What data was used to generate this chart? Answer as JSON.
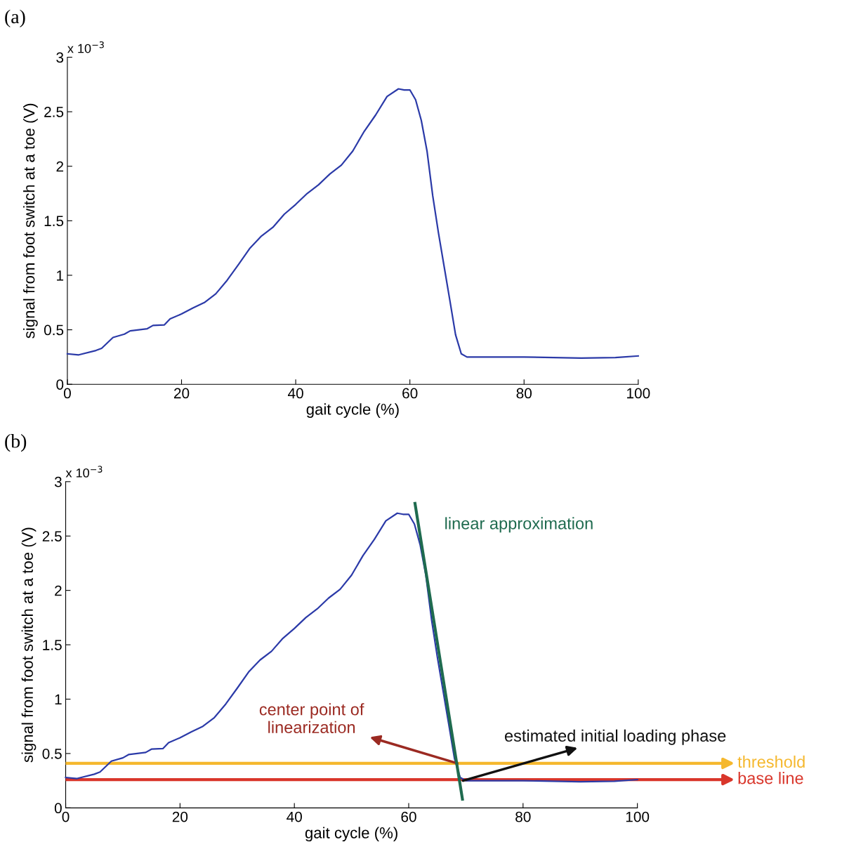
{
  "chart_data": [
    {
      "type": "line",
      "title": "(a)",
      "xlabel": "gait cycle (%)",
      "ylabel": "signal from foot switch at a toe (V)",
      "x": [
        0,
        2,
        5,
        6,
        8,
        10,
        11,
        14,
        15,
        17,
        18,
        20,
        22,
        24,
        26,
        28,
        30,
        32,
        34,
        36,
        38,
        40,
        42,
        44,
        46,
        48,
        50,
        52,
        54,
        56,
        58,
        59,
        60,
        61,
        62,
        63,
        64,
        65,
        66,
        67,
        68,
        69,
        70,
        80,
        90,
        96,
        100
      ],
      "series": [
        {
          "color": "#2b3aa8",
          "values": [
            0.28,
            0.27,
            0.31,
            0.33,
            0.43,
            0.46,
            0.49,
            0.51,
            0.54,
            0.545,
            0.6,
            0.645,
            0.7,
            0.75,
            0.83,
            0.955,
            1.1,
            1.25,
            1.36,
            1.44,
            1.56,
            1.65,
            1.75,
            1.83,
            1.93,
            2.01,
            2.14,
            2.32,
            2.47,
            2.64,
            2.71,
            2.7,
            2.7,
            2.61,
            2.42,
            2.14,
            1.73,
            1.39,
            1.08,
            0.77,
            0.455,
            0.28,
            0.25,
            0.25,
            0.24,
            0.245,
            0.26
          ]
        }
      ],
      "annotations": [
        "x 10$^{−3}$"
      ],
      "xlim": [
        0,
        100
      ],
      "xticks": [
        0,
        20,
        40,
        60,
        80,
        100
      ],
      "ylim": [
        0,
        3
      ],
      "yticks": [
        0,
        0.5,
        1,
        1.5,
        2,
        2.5,
        3
      ],
      "grid": false,
      "legend": false
    },
    {
      "type": "line",
      "title": "(b)",
      "xlabel": "gait cycle (%)",
      "ylabel": "signal from foot switch at a toe (V)",
      "x": [
        0,
        2,
        5,
        6,
        8,
        10,
        11,
        14,
        15,
        17,
        18,
        20,
        22,
        24,
        26,
        28,
        30,
        32,
        34,
        36,
        38,
        40,
        42,
        44,
        46,
        48,
        50,
        52,
        54,
        56,
        58,
        59,
        60,
        61,
        62,
        63,
        64,
        65,
        66,
        67,
        68,
        69,
        70,
        80,
        90,
        96,
        100
      ],
      "series": [
        {
          "color": "#2b3aa8",
          "values": [
            0.28,
            0.27,
            0.31,
            0.33,
            0.43,
            0.46,
            0.49,
            0.51,
            0.54,
            0.545,
            0.6,
            0.645,
            0.7,
            0.75,
            0.83,
            0.955,
            1.1,
            1.25,
            1.36,
            1.44,
            1.56,
            1.65,
            1.75,
            1.83,
            1.93,
            2.01,
            2.14,
            2.32,
            2.47,
            2.64,
            2.71,
            2.7,
            2.7,
            2.61,
            2.42,
            2.14,
            1.73,
            1.39,
            1.08,
            0.77,
            0.455,
            0.28,
            0.25,
            0.25,
            0.24,
            0.245,
            0.26
          ]
        },
        {
          "name": "linear approximation",
          "color": "#1f6b4f",
          "x": [
            61.1,
            69.4
          ],
          "values": [
            2.8,
            0.08
          ]
        }
      ],
      "ref_lines": [
        {
          "axis": "y",
          "value": 0.41,
          "label": "threshold",
          "color": "#f5b82e"
        },
        {
          "axis": "y",
          "value": 0.26,
          "label": "base line",
          "color": "#d9362b"
        }
      ],
      "annotations": [
        "x 10$^{−3}$",
        {
          "text": "center point of\nlinearization",
          "x": 68.5,
          "y": 0.41
        },
        {
          "text": "estimated initial loading phase",
          "x": 69.5,
          "y": 0.25
        }
      ],
      "xlim": [
        0,
        100
      ],
      "xticks": [
        0,
        20,
        40,
        60,
        80,
        100
      ],
      "ylim": [
        0,
        3
      ],
      "yticks": [
        0,
        0.5,
        1,
        1.5,
        2,
        2.5,
        3
      ],
      "grid": false,
      "legend": false
    }
  ]
}
